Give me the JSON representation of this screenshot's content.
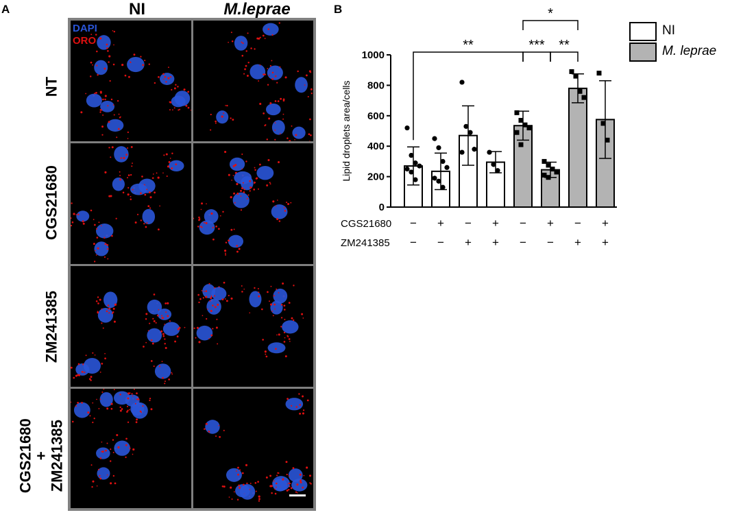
{
  "panel_a": {
    "letter": "A",
    "columns": [
      "NI",
      "M.leprae"
    ],
    "rows": [
      "NT",
      "CGS21680",
      "ZM241385",
      "CGS21680\n+\nZM241385"
    ],
    "channels": [
      {
        "name": "DAPI",
        "color": "#2a55d8"
      },
      {
        "name": "ORO",
        "color": "#e01010"
      }
    ]
  },
  "panel_b": {
    "letter": "B",
    "legend": [
      {
        "label": "NI",
        "fill": "#ffffff"
      },
      {
        "label": "M. leprae",
        "fill": "#b3b3b3"
      }
    ],
    "treatment_rows": [
      {
        "label": "CGS21680",
        "signs": [
          "−",
          "+",
          "−",
          "+",
          "−",
          "+",
          "−",
          "+"
        ]
      },
      {
        "label": "ZM241385",
        "signs": [
          "−",
          "−",
          "+",
          "+",
          "−",
          "−",
          "+",
          "+"
        ]
      }
    ]
  },
  "chart_data": {
    "type": "bar",
    "ylabel": "Lipid droplets area/cells",
    "ylim": [
      0,
      1000
    ],
    "yticks": [
      0,
      200,
      400,
      600,
      800,
      1000
    ],
    "bars": [
      {
        "group": "NI",
        "mean": 270,
        "sd": 125,
        "points": [
          520,
          340,
          290,
          270,
          250,
          230,
          180
        ]
      },
      {
        "group": "NI",
        "mean": 235,
        "sd": 120,
        "points": [
          450,
          390,
          300,
          260,
          190,
          170,
          130
        ]
      },
      {
        "group": "NI",
        "mean": 470,
        "sd": 195,
        "points": [
          820,
          530,
          490,
          380,
          360
        ]
      },
      {
        "group": "NI",
        "mean": 295,
        "sd": 70,
        "points": [
          360,
          280,
          240
        ]
      },
      {
        "group": "M. leprae",
        "mean": 535,
        "sd": 95,
        "points": [
          620,
          570,
          540,
          520,
          490,
          410
        ]
      },
      {
        "group": "M. leprae",
        "mean": 245,
        "sd": 50,
        "points": [
          300,
          275,
          250,
          230,
          210,
          195
        ]
      },
      {
        "group": "M. leprae",
        "mean": 780,
        "sd": 95,
        "points": [
          890,
          860,
          760,
          720
        ]
      },
      {
        "group": "M. leprae",
        "mean": 575,
        "sd": 255,
        "points": [
          880,
          550,
          440
        ]
      }
    ],
    "significance": [
      {
        "from": 0,
        "to": 4,
        "label": "**"
      },
      {
        "from": 4,
        "to": 5,
        "label": "***"
      },
      {
        "from": 5,
        "to": 6,
        "label": "**"
      },
      {
        "from": 4,
        "to": 6,
        "label": "*"
      }
    ]
  }
}
